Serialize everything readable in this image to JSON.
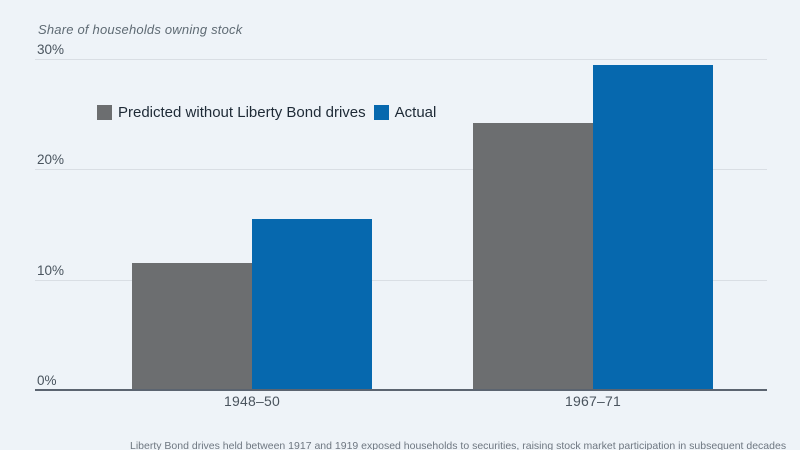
{
  "title": "Share of households owning stock",
  "legend": {
    "items": [
      {
        "label": "Predicted without Liberty Bond drives",
        "color": "#6C6E70"
      },
      {
        "label": "Actual",
        "color": "#0668AE"
      }
    ]
  },
  "chart_data": {
    "type": "bar",
    "title": "Share of households owning stock",
    "categories": [
      "1948–50",
      "1967–71"
    ],
    "series": [
      {
        "name": "Predicted without Liberty Bond drives",
        "color": "#6C6E70",
        "values": [
          11.5,
          24.2
        ]
      },
      {
        "name": "Actual",
        "color": "#0668AE",
        "values": [
          15.5,
          29.5
        ]
      }
    ],
    "xlabel": "",
    "ylabel": "Share of households owning stock (%)",
    "ylim": [
      0,
      30
    ],
    "yticks": [
      {
        "value": 0,
        "label": "0%"
      },
      {
        "value": 10,
        "label": "10%"
      },
      {
        "value": 20,
        "label": "20%"
      },
      {
        "value": 30,
        "label": "30%"
      }
    ],
    "grid": true,
    "legend_position": "upper-left-inside"
  },
  "caption": "Liberty Bond drives held between 1917 and 1919 exposed households to securities, raising stock market participation in subsequent decades",
  "colors": {
    "background": "#EEF3F8",
    "grid": "#D9DEE4",
    "axis": "#5B6470",
    "predicted": "#6C6E70",
    "actual": "#0668AE",
    "legend_text": "#1E2A36",
    "muted_text": "#49545E"
  }
}
